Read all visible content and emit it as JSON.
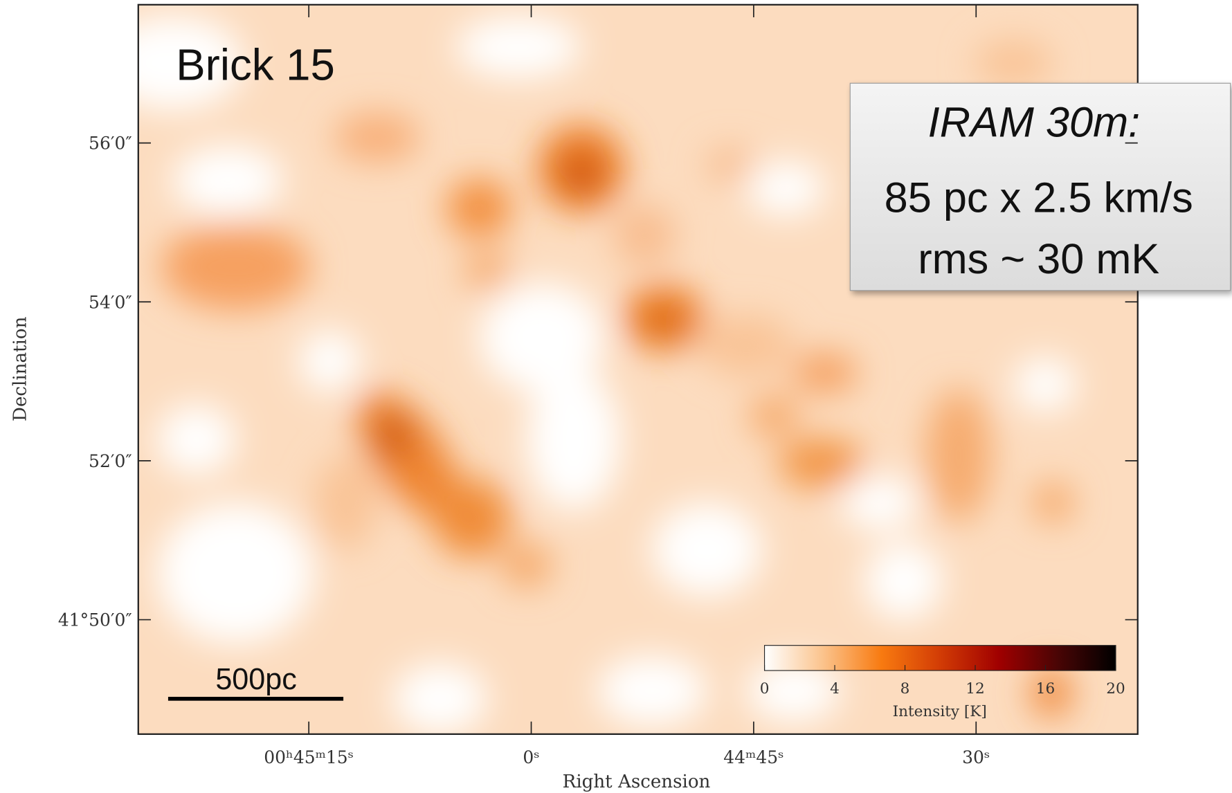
{
  "chart_data": {
    "type": "image",
    "title": "Brick 15",
    "annotations": [
      "IRAM 30m:",
      "85 pc x 2.5 km/s",
      "rms ~ 30 mK"
    ],
    "scale_bar_label": "500pc",
    "xlabel": "Right Ascension",
    "ylabel": "Declination",
    "xlim": [
      86.5,
      19.1
    ],
    "ylim": [
      48.56,
      57.74
    ],
    "xticks": [
      {
        "value": 75,
        "label": "00ʰ45ᵐ15ˢ"
      },
      {
        "value": 60,
        "label": "0ˢ"
      },
      {
        "value": 45,
        "label": "44ᵐ45ˢ"
      },
      {
        "value": 30,
        "label": "30ˢ"
      }
    ],
    "yticks": [
      {
        "value": 56,
        "label": "56′0″"
      },
      {
        "value": 54,
        "label": "54′0″"
      },
      {
        "value": 52,
        "label": "52′0″"
      },
      {
        "value": 50,
        "label": "41°50′0″"
      }
    ],
    "colorbar": {
      "label": "Intensity [K]",
      "lim": [
        0,
        20
      ],
      "ticks": [
        0,
        4,
        8,
        12,
        16,
        20
      ],
      "colors": [
        "#ffffff",
        "#fbc38c",
        "#f87a10",
        "#d23c05",
        "#a00000",
        "#4a0505",
        "#000000"
      ]
    }
  }
}
